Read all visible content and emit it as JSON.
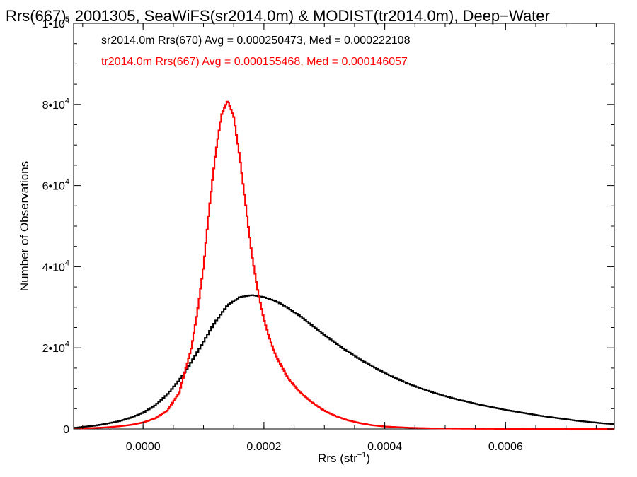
{
  "chart_data": {
    "type": "line",
    "title": "Rrs(667), 2001305, SeaWiFS(sr2014.0m) & MODIST(tr2014.0m), Deep−Water",
    "xlabel": {
      "base": "Rrs (str",
      "sup": "−1",
      "end": ")"
    },
    "ylabel": "Number of Observations",
    "xlim": [
      -0.000115,
      0.00078
    ],
    "ylim": [
      0,
      100000
    ],
    "xticks": [
      {
        "value": 0.0,
        "label": "0.0000"
      },
      {
        "value": 0.0002,
        "label": "0.0002"
      },
      {
        "value": 0.0004,
        "label": "0.0004"
      },
      {
        "value": 0.0006,
        "label": "0.0006"
      }
    ],
    "yticks": [
      {
        "value": 0,
        "mant": "0",
        "exp": ""
      },
      {
        "value": 20000,
        "mant": "2•10",
        "exp": "4"
      },
      {
        "value": 40000,
        "mant": "4•10",
        "exp": "4"
      },
      {
        "value": 60000,
        "mant": "6•10",
        "exp": "4"
      },
      {
        "value": 80000,
        "mant": "8•10",
        "exp": "4"
      },
      {
        "value": 100000,
        "mant": "1•10",
        "exp": "5"
      }
    ],
    "annotations": [
      {
        "text": "sr2014.0m Rrs(670) Avg = 0.000250473, Med = 0.000222108",
        "color": "#000000"
      },
      {
        "text": "tr2014.0m Rrs(667) Avg = 0.000155468, Med = 0.000146057",
        "color": "#ff0000"
      }
    ],
    "series": [
      {
        "color": "#000000",
        "x": [
          -0.00011,
          -0.0001,
          -8e-05,
          -6e-05,
          -4e-05,
          -2e-05,
          0.0,
          2e-05,
          4e-05,
          6e-05,
          8e-05,
          0.0001,
          0.00012,
          0.00014,
          0.00016,
          0.00018,
          0.0002,
          0.00022,
          0.00024,
          0.00026,
          0.00028,
          0.0003,
          0.00032,
          0.00034,
          0.00036,
          0.00038,
          0.0004,
          0.00042,
          0.00044,
          0.00046,
          0.00048,
          0.0005,
          0.00052,
          0.00054,
          0.00056,
          0.00058,
          0.0006,
          0.00062,
          0.00064,
          0.00066,
          0.00068,
          0.0007,
          0.00072,
          0.00074,
          0.00076,
          0.00078
        ],
        "y": [
          300,
          500,
          800,
          1300,
          1900,
          2800,
          4000,
          5800,
          8500,
          12000,
          16500,
          21500,
          26500,
          30500,
          32500,
          33000,
          32500,
          31500,
          29800,
          27800,
          25500,
          23200,
          21000,
          19000,
          17100,
          15400,
          13800,
          12400,
          11100,
          10000,
          9000,
          8100,
          7300,
          6600,
          5900,
          5300,
          4700,
          4200,
          3700,
          3200,
          2800,
          2400,
          2000,
          1700,
          1400,
          1200
        ]
      },
      {
        "color": "#ff0000",
        "x": [
          -0.00011,
          -0.0001,
          -8e-05,
          -6e-05,
          -4e-05,
          -2e-05,
          0.0,
          2e-05,
          4e-05,
          6e-05,
          8e-05,
          9e-05,
          0.0001,
          0.00011,
          0.00012,
          0.00013,
          0.00014,
          0.00015,
          0.00016,
          0.00017,
          0.00018,
          0.00019,
          0.0002,
          0.00021,
          0.00022,
          0.00024,
          0.00026,
          0.00028,
          0.0003,
          0.00032,
          0.00034,
          0.00036,
          0.00038,
          0.0004,
          0.00044,
          0.00048,
          0.00052,
          0.00056,
          0.0006,
          0.00066,
          0.00072,
          0.00078
        ],
        "y": [
          100,
          150,
          250,
          400,
          650,
          1000,
          1600,
          2600,
          4500,
          9000,
          20000,
          29000,
          40000,
          55000,
          68000,
          77500,
          81000,
          77000,
          67000,
          55000,
          43000,
          34000,
          27000,
          22000,
          18000,
          12500,
          9000,
          6500,
          4500,
          3100,
          2100,
          1400,
          900,
          600,
          300,
          150,
          80,
          40,
          20,
          10,
          5,
          0
        ]
      }
    ]
  }
}
